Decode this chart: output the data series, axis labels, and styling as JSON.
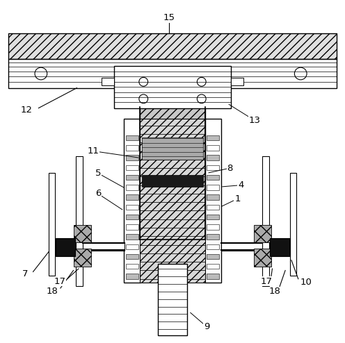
{
  "bg_color": "#ffffff",
  "line_color": "#000000",
  "figsize": [
    4.96,
    4.94
  ],
  "dpi": 100
}
